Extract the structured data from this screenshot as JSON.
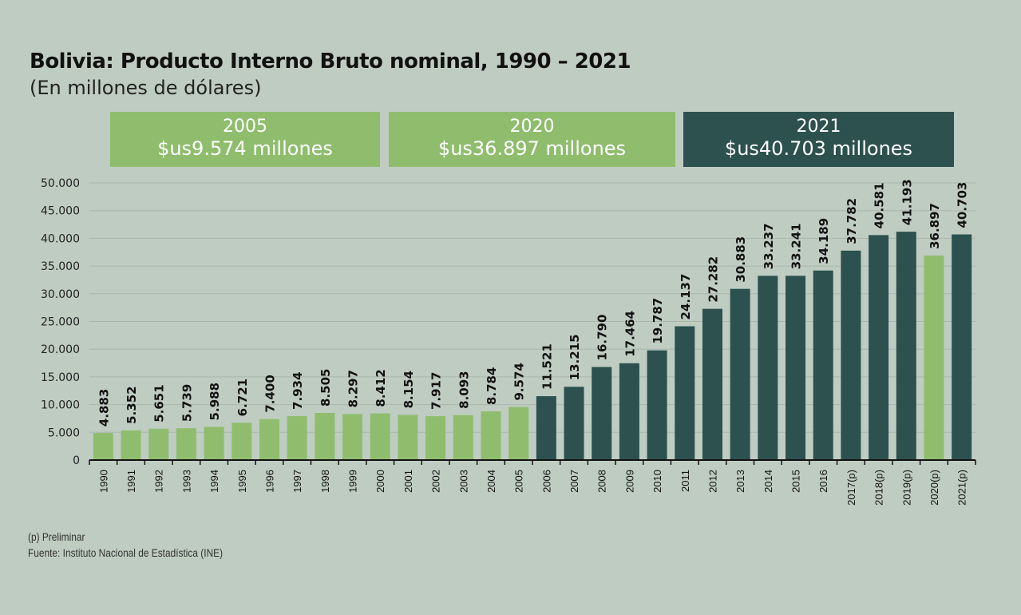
{
  "title": "Bolivia: Producto Interno Bruto nominal, 1990 – 2021",
  "subtitle": "(En millones de dólares)",
  "banners": [
    {
      "year": "2005",
      "value": "$us9.574 millones",
      "color": "#8fbd6d"
    },
    {
      "year": "2020",
      "value": "$us36.897 millones",
      "color": "#8fbd6d"
    },
    {
      "year": "2021",
      "value": "$us40.703 millones",
      "color": "#2c514e"
    }
  ],
  "notes": [
    "(p) Preliminar",
    "Fuente: Instituto Nacional de Estadística (INE)"
  ],
  "colors": {
    "background": "#bfccc2",
    "light_green": "#8fbd6d",
    "dark_green": "#2c514e",
    "grid": "#a9b6ad"
  },
  "chart_data": {
    "type": "bar",
    "ylim": [
      0,
      50000
    ],
    "yticks": [
      0,
      5000,
      10000,
      15000,
      20000,
      25000,
      30000,
      35000,
      40000,
      45000,
      50000
    ],
    "ytick_labels": [
      "0",
      "5.000",
      "10.000",
      "15.000",
      "20.000",
      "25.000",
      "30.000",
      "35.000",
      "40.000",
      "45.000",
      "50.000"
    ],
    "grid": true,
    "categories": [
      "1990",
      "1991",
      "1992",
      "1993",
      "1994",
      "1995",
      "1996",
      "1997",
      "1998",
      "1999",
      "2000",
      "2001",
      "2002",
      "2003",
      "2004",
      "2005",
      "2006",
      "2007",
      "2008",
      "2009",
      "2010",
      "2011",
      "2012",
      "2013",
      "2014",
      "2015",
      "2016",
      "2017(p)",
      "2018(p)",
      "2019(p)",
      "2020(p)",
      "2021(p)"
    ],
    "values": [
      4883,
      5352,
      5651,
      5739,
      5988,
      6721,
      7400,
      7934,
      8505,
      8297,
      8412,
      8154,
      7917,
      8093,
      8784,
      9574,
      11521,
      13215,
      16790,
      17464,
      19787,
      24137,
      27282,
      30883,
      33237,
      33241,
      34189,
      37782,
      40581,
      41193,
      36897,
      40703
    ],
    "labels": [
      "4.883",
      "5.352",
      "5.651",
      "5.739",
      "5.988",
      "6.721",
      "7.400",
      "7.934",
      "8.505",
      "8.297",
      "8.412",
      "8.154",
      "7.917",
      "8.093",
      "8.784",
      "9.574",
      "11.521",
      "13.215",
      "16.790",
      "17.464",
      "19.787",
      "24.137",
      "27.282",
      "30.883",
      "33.237",
      "33.241",
      "34.189",
      "37.782",
      "40.581",
      "41.193",
      "36.897",
      "40.703"
    ],
    "bar_colors": [
      "light",
      "light",
      "light",
      "light",
      "light",
      "light",
      "light",
      "light",
      "light",
      "light",
      "light",
      "light",
      "light",
      "light",
      "light",
      "light",
      "dark",
      "dark",
      "dark",
      "dark",
      "dark",
      "dark",
      "dark",
      "dark",
      "dark",
      "dark",
      "dark",
      "dark",
      "dark",
      "dark",
      "light",
      "dark"
    ]
  }
}
